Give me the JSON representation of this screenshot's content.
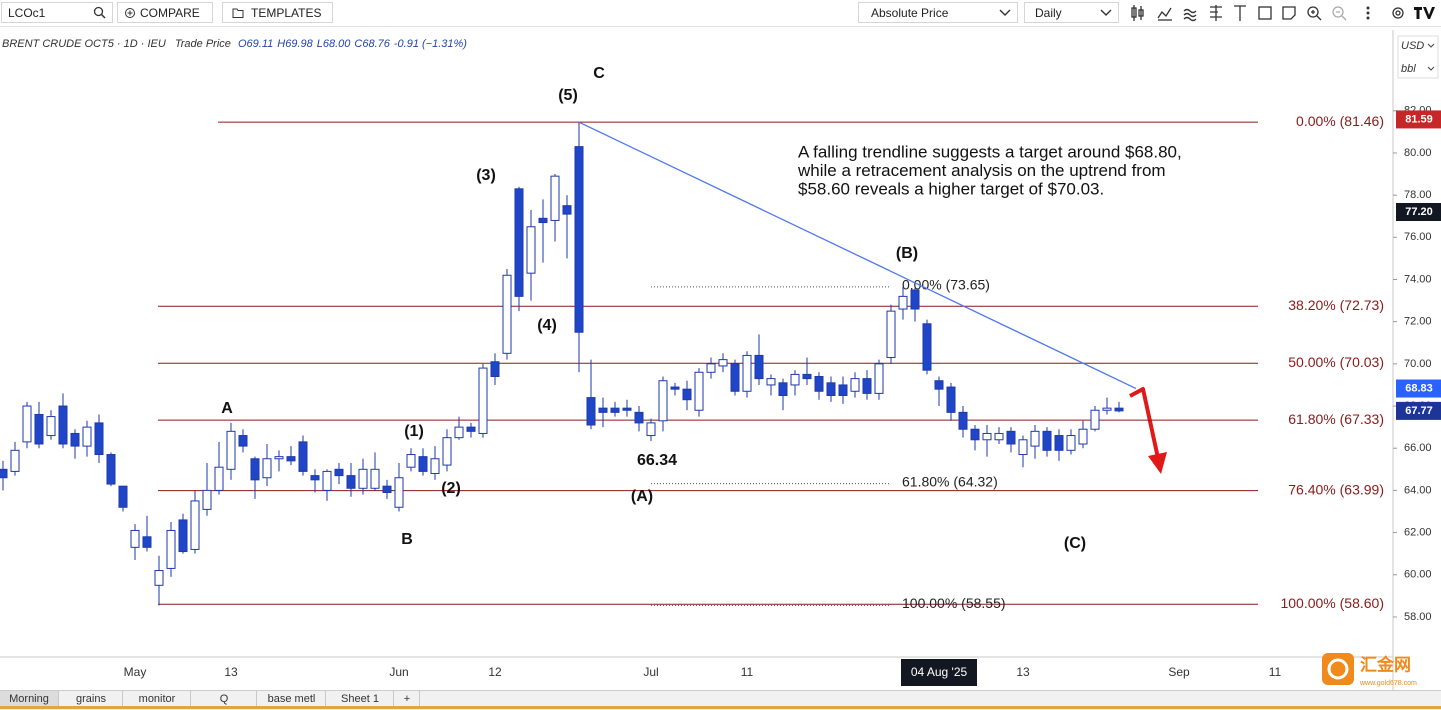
{
  "toolbar": {
    "symbol": "LCOc1",
    "compare": "COMPARE",
    "templates": "TEMPLATES",
    "price_mode": "Absolute Price",
    "interval": "Daily"
  },
  "chart_data": {
    "type": "candlestick",
    "title": "BRENT CRUDE OCT5 · 1D · IEU",
    "subtitle": "Trade Price",
    "readout": [
      "O69.11",
      "H69.98",
      "L68.00",
      "C68.76",
      "-0.91 (−1.31%)"
    ],
    "currency": "USD",
    "unit": "bbl",
    "categories": [
      null,
      null,
      null,
      null,
      null,
      null,
      null,
      null,
      null,
      null,
      null,
      "May",
      null,
      null,
      null,
      null,
      null,
      null,
      null,
      "13",
      null,
      null,
      null,
      null,
      null,
      null,
      null,
      null,
      null,
      null,
      null,
      null,
      null,
      "Jun",
      null,
      null,
      null,
      null,
      null,
      null,
      null,
      "12",
      null,
      null,
      null,
      null,
      null,
      null,
      null,
      null,
      null,
      null,
      null,
      null,
      "Jul",
      null,
      null,
      null,
      null,
      null,
      null,
      null,
      "11",
      null,
      null,
      null,
      null,
      null,
      null,
      null,
      null,
      null,
      null,
      null,
      null,
      null,
      null,
      null,
      "04 Aug '25",
      null,
      null,
      null,
      null,
      null,
      null,
      "13",
      null,
      null,
      null,
      null,
      null,
      null,
      null,
      null,
      null,
      null,
      null,
      null,
      "Sep",
      null,
      null,
      null,
      null,
      null,
      null,
      null,
      "11",
      null,
      null,
      null,
      null,
      null,
      null,
      null,
      null,
      null
    ],
    "highlight_category": 78,
    "open": [
      65.0,
      64.9,
      66.3,
      67.6,
      66.6,
      68.0,
      66.7,
      66.1,
      67.2,
      65.7,
      64.2,
      61.3,
      61.8,
      59.5,
      60.3,
      62.6,
      61.2,
      63.1,
      64.0,
      65.0,
      66.6,
      65.5,
      64.6,
      65.5,
      65.6,
      66.3,
      64.7,
      64.0,
      65.0,
      64.7,
      64.1,
      64.1,
      64.2,
      63.2,
      65.1,
      65.6,
      64.8,
      65.2,
      66.5,
      67.0,
      66.7,
      70.1,
      70.5,
      78.3,
      74.3,
      76.9,
      76.8,
      77.5,
      80.3,
      68.4,
      67.9,
      67.9,
      67.9,
      67.7,
      66.6,
      67.3,
      68.9,
      68.8,
      67.8,
      69.6,
      69.9,
      70.0,
      68.7,
      70.4,
      69.0,
      69.1,
      69.0,
      69.5,
      69.4,
      69.1,
      69.0,
      68.7,
      69.3,
      68.6,
      70.3,
      72.6,
      73.5,
      71.9,
      69.2,
      68.9,
      67.7,
      66.9,
      66.4,
      66.4,
      66.8,
      65.7,
      66.1,
      66.8,
      66.6,
      65.9,
      66.2,
      66.9,
      67.8,
      67.9,
      null,
      null,
      null,
      null,
      null,
      null,
      null,
      null,
      null,
      null,
      null,
      null,
      null,
      null,
      null,
      null,
      null,
      null,
      null,
      null,
      null,
      null
    ],
    "high": [
      65.4,
      66.3,
      68.2,
      68.2,
      67.8,
      68.6,
      66.9,
      67.3,
      67.6,
      65.8,
      64.2,
      62.4,
      62.8,
      60.9,
      62.5,
      62.9,
      64.0,
      65.3,
      66.3,
      67.2,
      66.9,
      65.6,
      66.2,
      65.9,
      66.1,
      66.6,
      65.0,
      65.0,
      65.3,
      65.3,
      65.5,
      65.8,
      64.5,
      65.3,
      66.0,
      66.0,
      66.1,
      66.9,
      67.5,
      67.2,
      70.0,
      70.5,
      74.5,
      78.4,
      77.3,
      77.8,
      79.0,
      78.0,
      81.46,
      70.2,
      68.4,
      68.2,
      68.3,
      68.0,
      67.4,
      69.4,
      69.1,
      69.2,
      69.8,
      70.3,
      70.5,
      70.2,
      70.6,
      71.4,
      69.5,
      69.3,
      69.7,
      70.3,
      69.6,
      69.4,
      69.4,
      69.6,
      69.7,
      70.2,
      72.8,
      73.65,
      73.6,
      72.1,
      69.4,
      69.1,
      68.0,
      67.1,
      67.1,
      67.0,
      67.0,
      66.6,
      67.1,
      67.0,
      66.9,
      66.9,
      67.3,
      68.0,
      68.4,
      68.2,
      null,
      null,
      null,
      null,
      null,
      null,
      null,
      null,
      null,
      null,
      null,
      null,
      null,
      null,
      null,
      null,
      null,
      null,
      null,
      null,
      null,
      null
    ],
    "low": [
      64.0,
      64.7,
      66.0,
      66.0,
      66.4,
      66.0,
      65.5,
      65.6,
      65.3,
      64.2,
      63.0,
      60.7,
      61.1,
      58.55,
      59.9,
      61.0,
      61.0,
      62.8,
      63.8,
      64.5,
      65.8,
      63.6,
      64.2,
      64.9,
      65.2,
      64.7,
      63.9,
      63.5,
      64.3,
      63.7,
      63.8,
      64.0,
      63.6,
      63.0,
      64.9,
      64.7,
      64.5,
      64.9,
      66.4,
      66.5,
      66.5,
      69.0,
      70.2,
      72.5,
      73.0,
      74.8,
      75.8,
      75.0,
      69.6,
      66.9,
      67.0,
      67.5,
      67.5,
      66.8,
      66.34,
      66.8,
      68.5,
      67.8,
      67.5,
      69.3,
      69.6,
      68.5,
      68.4,
      69.0,
      68.5,
      67.8,
      68.5,
      69.0,
      68.3,
      68.2,
      68.1,
      68.4,
      68.3,
      68.3,
      70.0,
      72.1,
      72.0,
      69.5,
      68.0,
      67.3,
      66.5,
      65.9,
      65.6,
      66.2,
      65.8,
      65.1,
      65.5,
      65.6,
      65.4,
      65.7,
      66.0,
      66.8,
      67.6,
      67.7,
      null,
      null,
      null,
      null,
      null,
      null,
      null,
      null,
      null,
      null,
      null,
      null,
      null,
      null,
      null,
      null,
      null,
      null,
      null,
      null,
      null,
      null
    ],
    "close": [
      64.6,
      65.9,
      68.0,
      66.2,
      67.5,
      66.2,
      66.1,
      67.0,
      65.7,
      64.3,
      63.2,
      62.1,
      61.3,
      60.2,
      62.1,
      61.1,
      63.5,
      64.0,
      65.1,
      66.8,
      66.1,
      64.5,
      65.5,
      65.6,
      65.4,
      64.9,
      64.5,
      64.9,
      64.7,
      64.1,
      65.0,
      65.0,
      63.9,
      64.6,
      65.7,
      64.9,
      65.5,
      66.5,
      67.0,
      66.8,
      69.8,
      69.4,
      74.2,
      73.2,
      76.5,
      76.7,
      78.9,
      77.1,
      71.5,
      67.1,
      67.7,
      67.7,
      67.8,
      67.2,
      67.2,
      69.2,
      68.8,
      68.3,
      69.6,
      70.0,
      70.2,
      68.7,
      70.4,
      69.3,
      69.3,
      68.5,
      69.5,
      69.3,
      68.7,
      68.5,
      68.5,
      69.3,
      68.6,
      70.0,
      72.5,
      73.2,
      72.6,
      69.7,
      68.8,
      67.7,
      66.9,
      66.4,
      66.7,
      66.7,
      66.2,
      66.4,
      66.8,
      65.9,
      65.9,
      66.6,
      66.9,
      67.8,
      67.9,
      67.77,
      null,
      null,
      null,
      null,
      null,
      null,
      null,
      null,
      null,
      null,
      null,
      null,
      null,
      null,
      null,
      null,
      null,
      null,
      null,
      null,
      null,
      null
    ],
    "up_color": "#ffffff",
    "down_color": "#1f45c9",
    "edge_color": "#1f3aa8",
    "ylim": [
      56.1,
      85.83
    ],
    "yticks": [
      {
        "value": 58,
        "label": "58.00"
      },
      {
        "value": 60,
        "label": "60.00"
      },
      {
        "value": 62,
        "label": "62.00"
      },
      {
        "value": 64,
        "label": "64.00"
      },
      {
        "value": 66,
        "label": "66.00"
      },
      {
        "value": 68,
        "label": "68.00"
      },
      {
        "value": 70,
        "label": "70.00"
      },
      {
        "value": 72,
        "label": "72.00"
      },
      {
        "value": 74,
        "label": "74.00"
      },
      {
        "value": 76,
        "label": "76.00"
      },
      {
        "value": 78,
        "label": "78.00"
      },
      {
        "value": 80,
        "label": "80.00"
      },
      {
        "value": 82,
        "label": "82.00"
      }
    ],
    "grid": false,
    "fib_color": "#8b1a1a",
    "fib_levels": [
      {
        "value": 81.46,
        "label": "0.00% (81.46)"
      },
      {
        "value": 72.73,
        "label": "38.20% (72.73)"
      },
      {
        "value": 70.03,
        "label": "50.00% (70.03)"
      },
      {
        "value": 67.33,
        "label": "61.80% (67.33)"
      },
      {
        "value": 63.99,
        "label": "76.40% (63.99)"
      },
      {
        "value": 58.6,
        "label": "100.00% (58.60)"
      }
    ],
    "fib2_color": "#555555",
    "fib_levels_2": [
      {
        "value": 73.65,
        "label": "0.00% (73.65)"
      },
      {
        "value": 64.32,
        "label": "61.80% (64.32)"
      },
      {
        "value": 58.55,
        "label": "100.00% (58.55)"
      }
    ],
    "trendline": {
      "color": "#4f78ee",
      "values": [
        81.46,
        68.83
      ]
    },
    "price_badges": [
      {
        "value": 81.59,
        "color": "#c62828"
      },
      {
        "value": 77.2,
        "label": "77.20",
        "color": "#131722"
      },
      {
        "value": 68.83,
        "color": "#2962ff"
      },
      {
        "value": 67.77,
        "color": "#1c3596"
      }
    ],
    "wave_labels": [
      "C",
      "(5)",
      "(3)",
      "(4)",
      "(B)",
      "A",
      "(1)",
      "(2)",
      "B",
      "66.34",
      "(A)",
      "(C)"
    ],
    "annotation": [
      "A falling trendline suggests a target around $68.80,",
      "while a retracement analysis on the uptrend from",
      "$58.60 reveals a higher target of $70.03."
    ]
  },
  "tabs": [
    "Morning",
    "grains",
    "monitor",
    "Q",
    "base metl",
    "Sheet 1",
    "+"
  ],
  "watermark": {
    "name": "汇金网",
    "url": "www.gold678.com"
  }
}
